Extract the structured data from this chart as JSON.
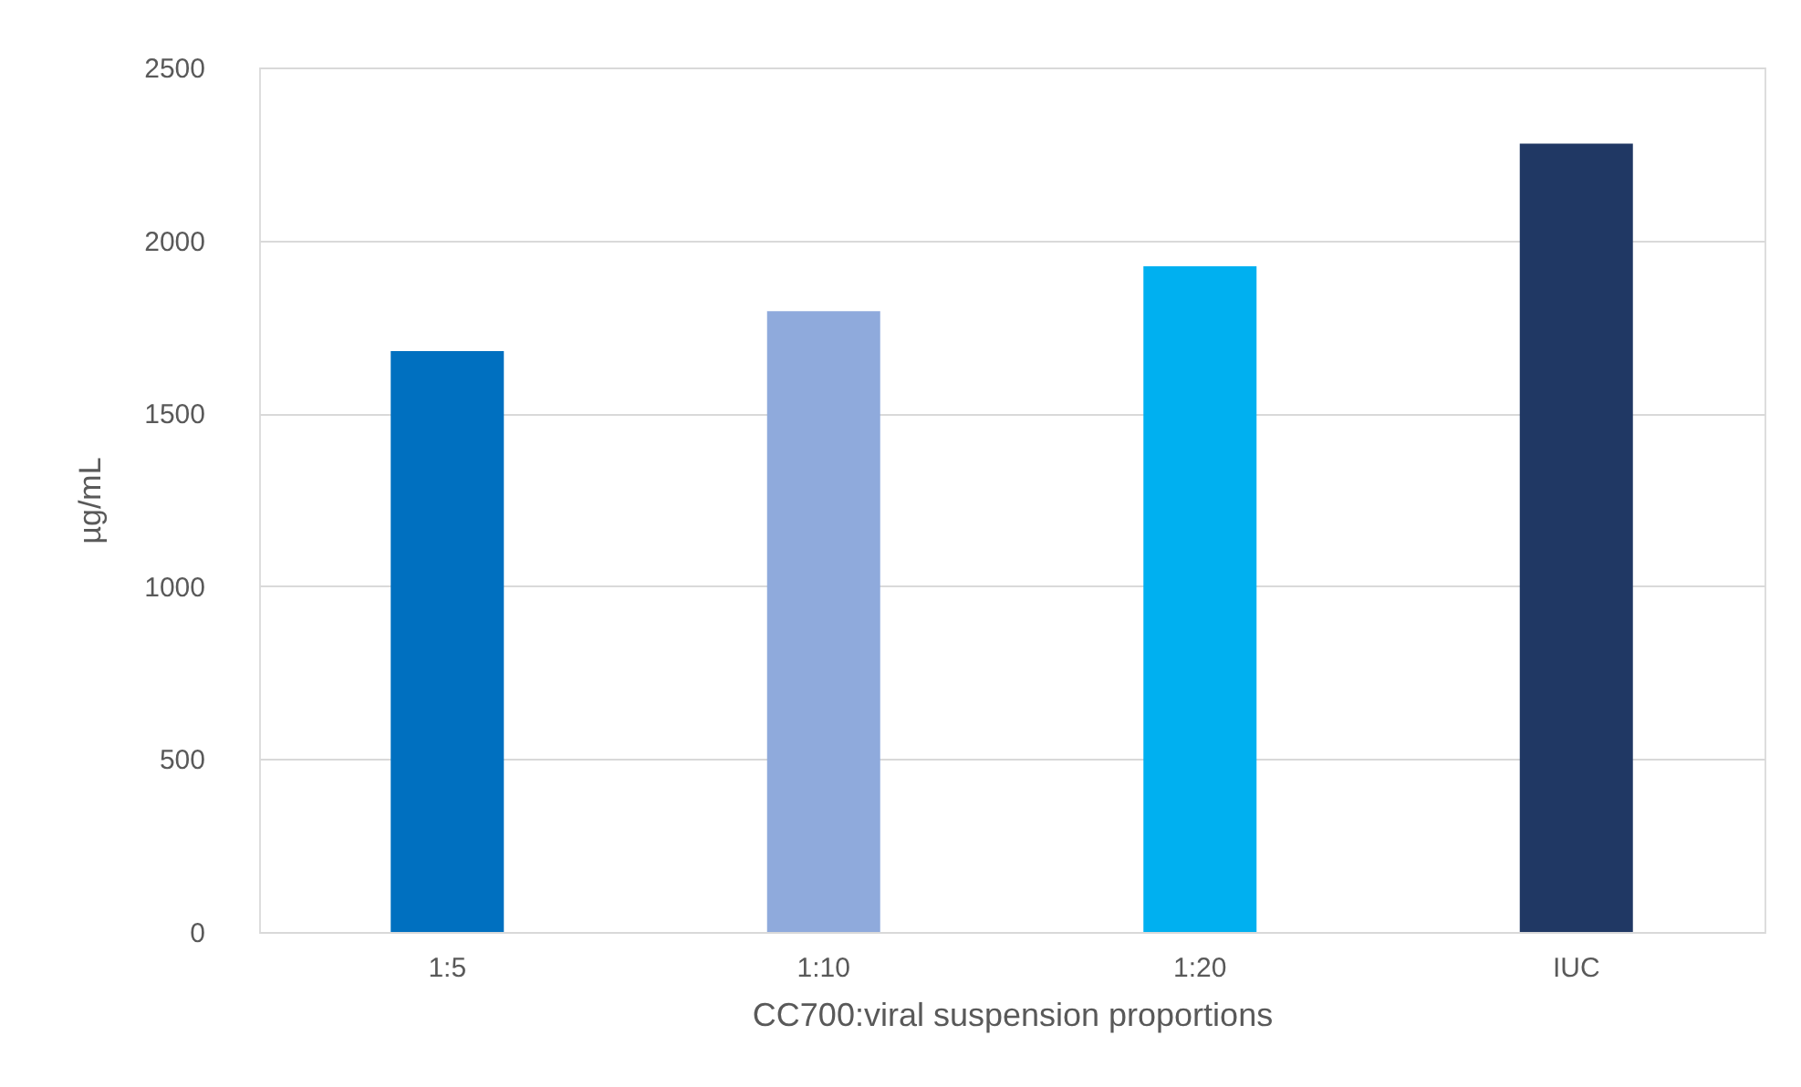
{
  "chart_data": {
    "type": "bar",
    "xlabel": "CC700:viral suspension proportions",
    "ylabel": "µg/mL",
    "categories": [
      "1:5",
      "1:10",
      "1:20",
      "IUC"
    ],
    "values": [
      1680,
      1795,
      1925,
      2280
    ],
    "colors": [
      "#0070c0",
      "#8faadc",
      "#00b0f0",
      "#203864"
    ],
    "ylim": [
      0,
      2500
    ],
    "yticks": [
      0,
      500,
      1000,
      1500,
      2000,
      2500
    ],
    "grid": "y"
  }
}
